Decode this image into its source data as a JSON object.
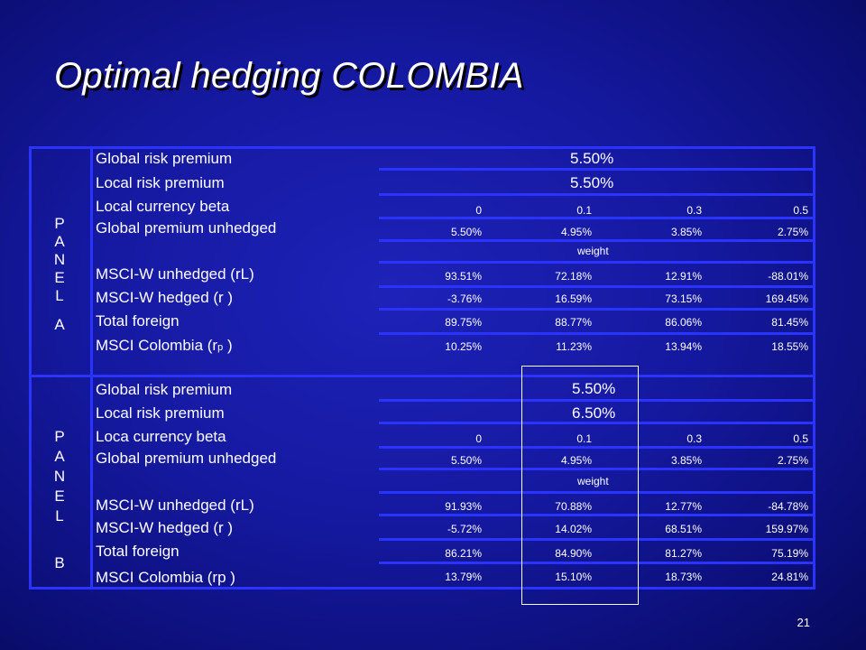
{
  "slide": {
    "title": "Optimal hedging COLOMBIA",
    "page_number": "21"
  },
  "panel_a": {
    "side_letters": [
      "P",
      "A",
      "N",
      "E",
      "L",
      "A"
    ],
    "global_risk_premium_label": "Global risk premium",
    "global_risk_premium_value": "5.50%",
    "local_risk_premium_label": "Local risk premium",
    "local_risk_premium_value": "5.50%",
    "beta_label": "Local currency beta",
    "betas": [
      "0",
      "0.1",
      "0.3",
      "0.5"
    ],
    "gpu_label": "Global premium unhedged",
    "gpu_values": [
      "5.50%",
      "4.95%",
      "3.85%",
      "2.75%"
    ],
    "weight_label": "weight",
    "msci_w_unhedged_label": "MSCI-W unhedged (rL)",
    "msci_w_unhedged_values": [
      "93.51%",
      "72.18%",
      "12.91%",
      "-88.01%"
    ],
    "msci_w_hedged_label": "MSCI-W  hedged (r )",
    "msci_w_hedged_values": [
      "-3.76%",
      "16.59%",
      "73.15%",
      "169.45%"
    ],
    "total_foreign_label": "Total foreign",
    "total_foreign_values": [
      "89.75%",
      "88.77%",
      "86.06%",
      "81.45%"
    ],
    "msci_local_label_prefix": "MSCI Colombia (r",
    "msci_local_label_sub": "p",
    "msci_local_label_suffix": " )",
    "msci_local_values": [
      "10.25%",
      "11.23%",
      "13.94%",
      "18.55%"
    ]
  },
  "panel_b": {
    "side_letters": [
      "P",
      "A",
      "N",
      "E",
      "L",
      "B"
    ],
    "global_risk_premium_label": "Global risk premium",
    "global_risk_premium_value": "5.50%",
    "local_risk_premium_label": "Local risk premium",
    "local_risk_premium_value": "6.50%",
    "beta_label": "Loca currency beta",
    "betas": [
      "0",
      "0.1",
      "0.3",
      "0.5"
    ],
    "gpu_label": "Global premium unhedged",
    "gpu_values": [
      "5.50%",
      "4.95%",
      "3.85%",
      "2.75%"
    ],
    "weight_label": "weight",
    "msci_w_unhedged_label": "MSCI-W unhedged (rL)",
    "msci_w_unhedged_values": [
      "91.93%",
      "70.88%",
      "12.77%",
      "-84.78%"
    ],
    "msci_w_hedged_label": "MSCI-W hedged (r )",
    "msci_w_hedged_values": [
      "-5.72%",
      "14.02%",
      "68.51%",
      "159.97%"
    ],
    "total_foreign_label": "Total foreign",
    "total_foreign_values": [
      "86.21%",
      "84.90%",
      "81.27%",
      "75.19%"
    ],
    "msci_local_label": "MSCI Colombia (rp )",
    "msci_local_values": [
      "13.79%",
      "15.10%",
      "18.73%",
      "24.81%"
    ]
  }
}
